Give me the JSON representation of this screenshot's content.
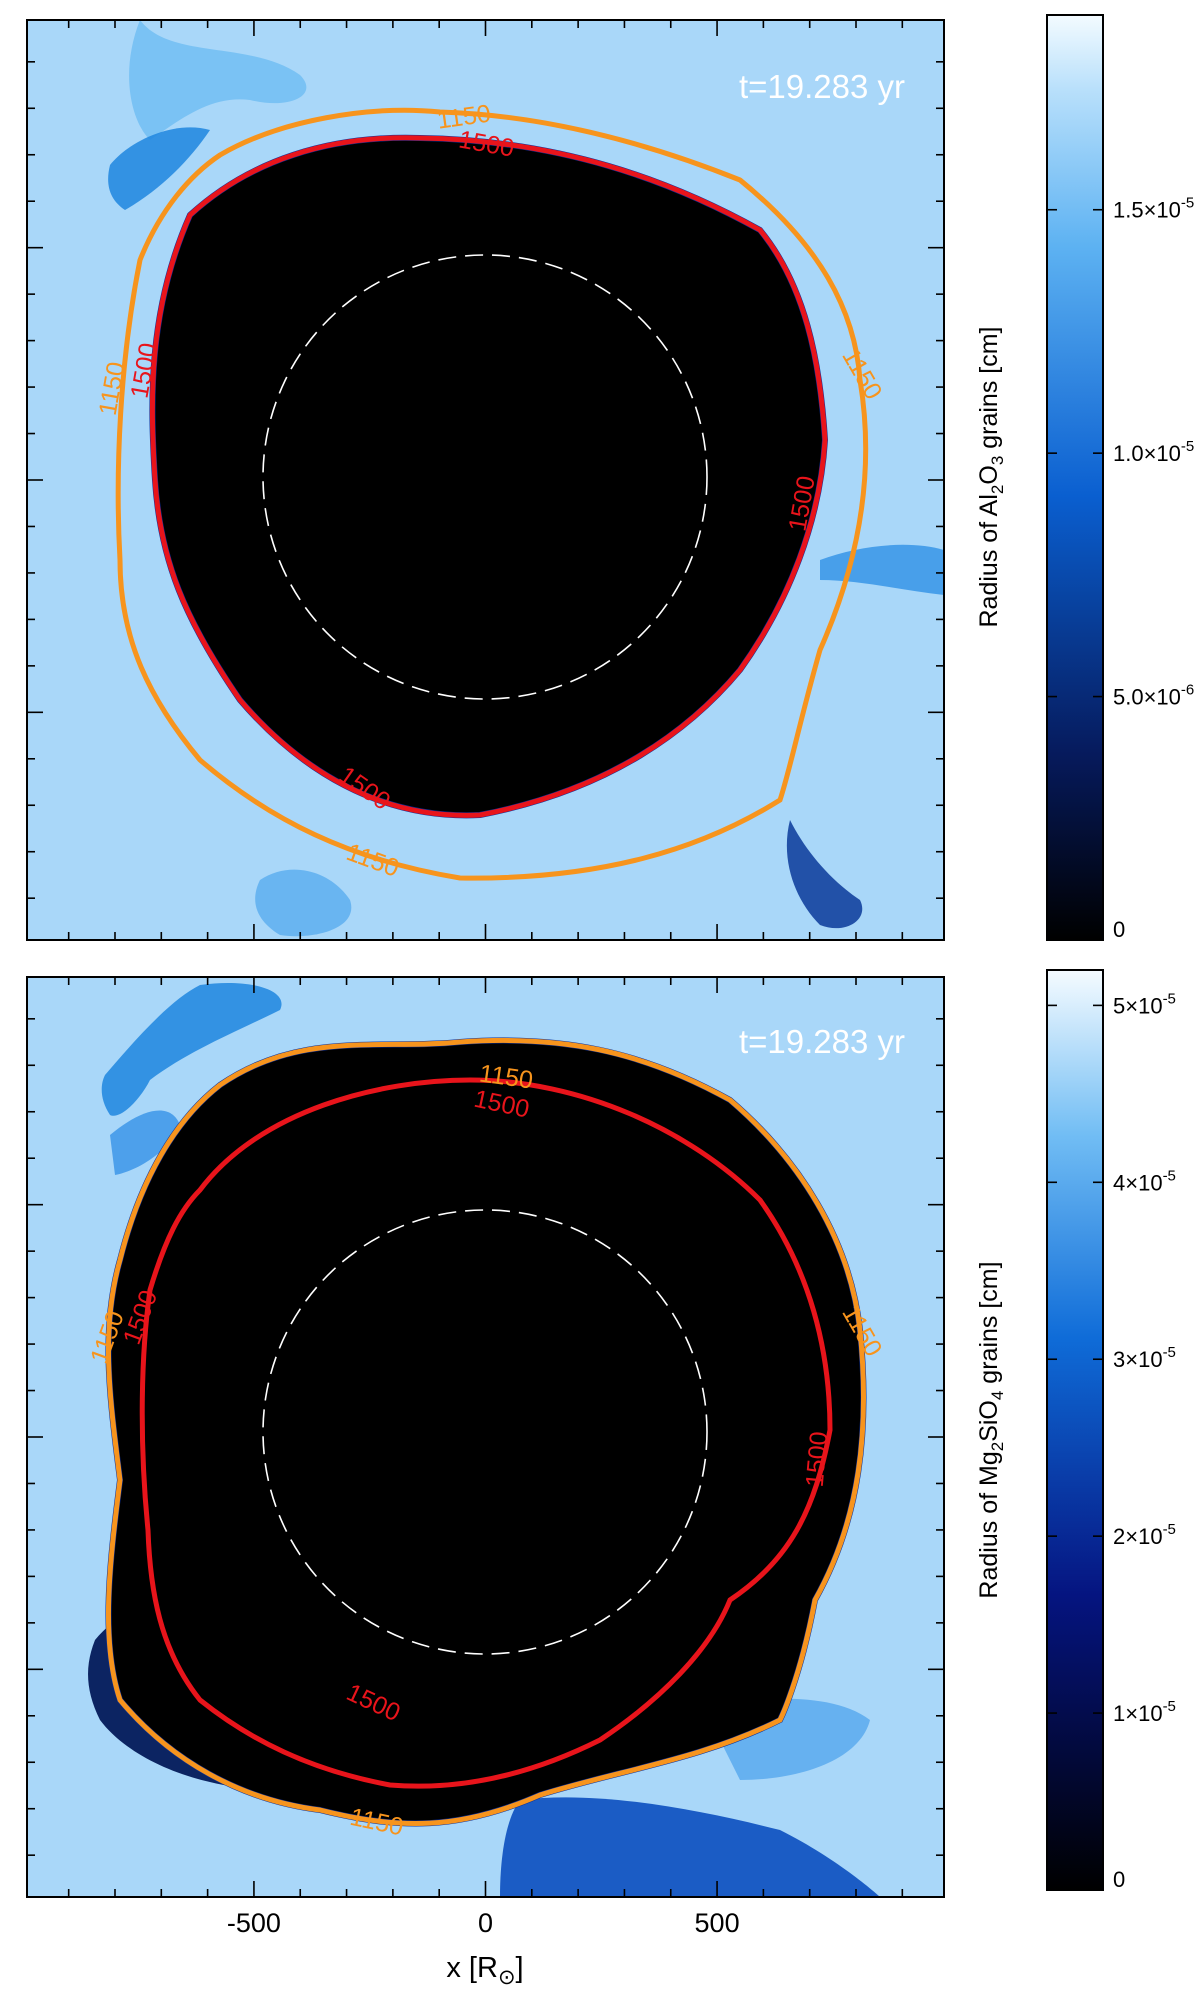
{
  "chart_data": [
    {
      "type": "heatmap",
      "time_label": "t=19.283 yr",
      "colorbar": {
        "title": "Radius of Al₂O₃ grains [cm]",
        "title_parts": [
          "Radius of Al",
          "2",
          "O",
          "3",
          " grains [cm]"
        ],
        "range": [
          0,
          1.9e-05
        ],
        "ticks": [
          {
            "value": 0,
            "mant": "0",
            "exp": ""
          },
          {
            "value": 5e-06,
            "mant": "5.0×10",
            "exp": "-6"
          },
          {
            "value": 1e-05,
            "mant": "1.0×10",
            "exp": "-5"
          },
          {
            "value": 1.5e-05,
            "mant": "1.5×10",
            "exp": "-5"
          }
        ]
      },
      "contours": [
        {
          "level": 1150,
          "label": "1150",
          "color": "#f7941d"
        },
        {
          "level": 1500,
          "label": "1500",
          "color": "#e8141b"
        }
      ],
      "dashed_circle_radius_rsun": 480
    },
    {
      "type": "heatmap",
      "time_label": "t=19.283 yr",
      "colorbar": {
        "title": "Radius of Mg₂SiO₄ grains [cm]",
        "title_parts": [
          "Radius of Mg",
          "2",
          "SiO",
          "4",
          " grains [cm]"
        ],
        "range": [
          0,
          5.2e-05
        ],
        "ticks": [
          {
            "value": 0,
            "mant": "0",
            "exp": ""
          },
          {
            "value": 1e-05,
            "mant": "1×10",
            "exp": "-5"
          },
          {
            "value": 2e-05,
            "mant": "2×10",
            "exp": "-5"
          },
          {
            "value": 3e-05,
            "mant": "3×10",
            "exp": "-5"
          },
          {
            "value": 4e-05,
            "mant": "4×10",
            "exp": "-5"
          },
          {
            "value": 5e-05,
            "mant": "5×10",
            "exp": "-5"
          }
        ]
      },
      "contours": [
        {
          "level": 1150,
          "label": "1150",
          "color": "#f7941d"
        },
        {
          "level": 1500,
          "label": "1500",
          "color": "#e8141b"
        }
      ],
      "dashed_circle_radius_rsun": 480
    }
  ],
  "xaxis": {
    "label_parts": [
      "x [R",
      "⊙",
      "]"
    ],
    "range": [
      -990,
      990
    ],
    "ticks": [
      -500,
      0,
      500
    ],
    "tick_labels": [
      "-500",
      "0",
      "500"
    ]
  },
  "colors": {
    "background": "#a9d7f9",
    "dark_blue": "#06174d",
    "mid_blue": "#1f8fe6",
    "cavity": "#000000",
    "dashed_circle": "#ffffff"
  }
}
